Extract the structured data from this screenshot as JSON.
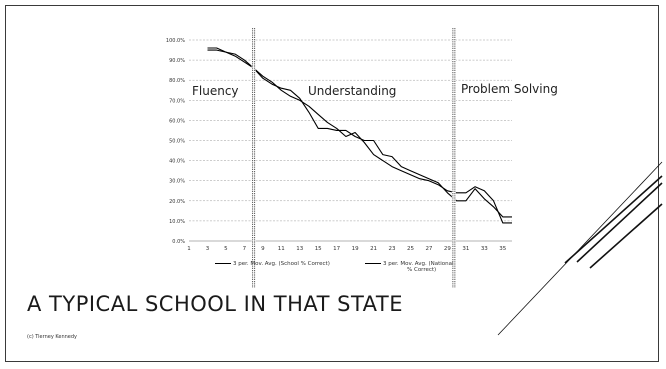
{
  "slide": {
    "title": "A TYPICAL SCHOOL IN THAT STATE",
    "footer": "(c) Tierney Kennedy"
  },
  "zones": [
    "Fluency",
    "Understanding",
    "Problem Solving"
  ],
  "colors": {
    "frame": "#3a3a3a",
    "series_line": "#000000",
    "grid": "#9a9a9a",
    "divider": "#555555"
  },
  "chart_data": {
    "type": "line",
    "title": "",
    "xlabel": "",
    "ylabel": "",
    "xlim": [
      1,
      36
    ],
    "ylim": [
      0,
      100
    ],
    "x_ticks": [
      1,
      3,
      5,
      7,
      9,
      11,
      13,
      15,
      17,
      19,
      21,
      23,
      25,
      27,
      29,
      31,
      33,
      35
    ],
    "y_ticks": [
      "0.0%",
      "10.0%",
      "20.0%",
      "30.0%",
      "40.0%",
      "50.0%",
      "60.0%",
      "70.0%",
      "80.0%",
      "90.0%",
      "100.0%"
    ],
    "grid": true,
    "legend_position": "bottom",
    "dividers_x": [
      8,
      29.7
    ],
    "series": [
      {
        "name": "3 per. Mov. Avg. (School % Correct)",
        "x": [
          3,
          4,
          5,
          6,
          7,
          8,
          9,
          10,
          11,
          12,
          13,
          14,
          15,
          16,
          17,
          18,
          19,
          20,
          21,
          22,
          23,
          24,
          25,
          26,
          27,
          28,
          29,
          30,
          31,
          32,
          33,
          34,
          35,
          36
        ],
        "values": [
          96,
          96,
          94,
          93,
          90,
          86,
          81,
          78,
          76,
          75,
          71,
          64,
          56,
          56,
          55,
          55,
          52,
          50,
          50,
          43,
          42,
          37,
          35,
          33,
          31,
          29,
          24,
          20,
          20,
          26,
          21,
          17,
          12,
          12
        ]
      },
      {
        "name": "3 per. Mov. Avg. (National % Correct)",
        "x": [
          3,
          4,
          5,
          6,
          7,
          8,
          9,
          10,
          11,
          12,
          13,
          14,
          15,
          16,
          17,
          18,
          19,
          20,
          21,
          22,
          23,
          24,
          25,
          26,
          27,
          28,
          29,
          30,
          31,
          32,
          33,
          34,
          35,
          36
        ],
        "values": [
          95,
          95,
          94,
          92,
          89,
          86,
          82,
          79,
          75,
          72,
          70,
          67,
          63,
          59,
          56,
          52,
          54,
          49,
          43,
          40,
          37,
          35,
          33,
          31,
          30,
          28,
          25,
          24,
          24,
          27,
          25,
          20,
          9,
          9
        ]
      }
    ]
  }
}
